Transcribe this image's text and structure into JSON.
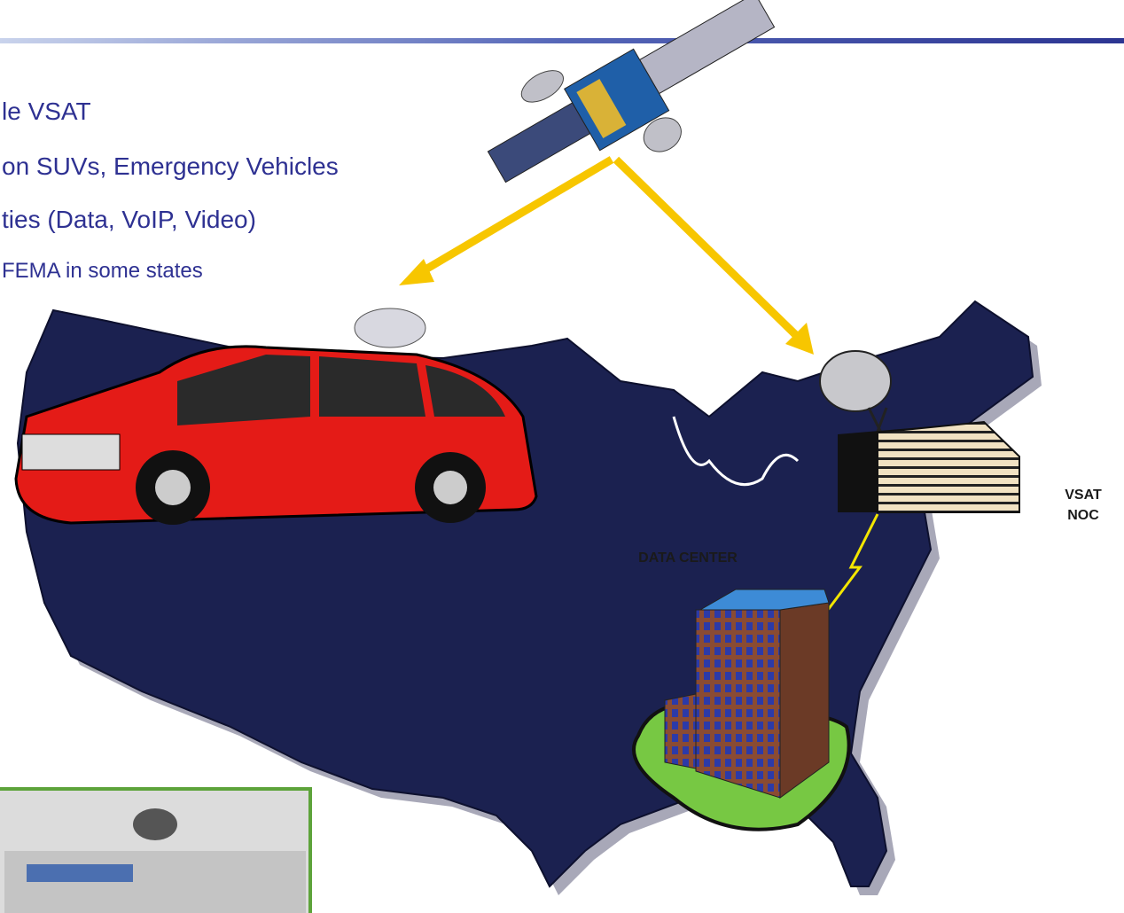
{
  "bullets": [
    "le VSAT",
    "on SUVs, Emergency Vehicles",
    "ties (Data, VoIP, Video)",
    "FEMA in some states"
  ],
  "labels": {
    "data_center": "DATA CENTER",
    "vsat_noc": [
      "VSAT",
      "NOC"
    ]
  }
}
